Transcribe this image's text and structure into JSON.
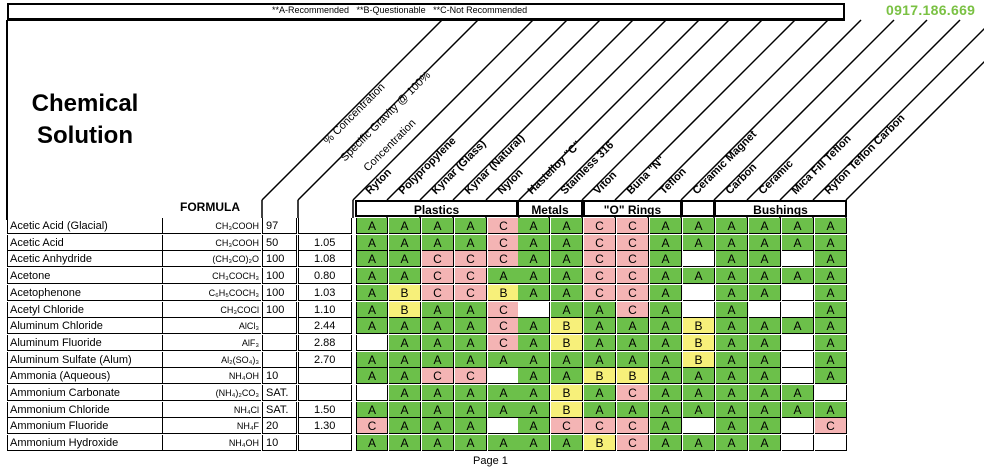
{
  "legend": "**A-Recommended   **B-Questionable   **C-Not Recommended",
  "phone": "0917.186.669",
  "title_line1": "Chemical",
  "title_line2": "Solution",
  "formula_header": "FORMULA",
  "column_headers": {
    "concentration": "% Concentration",
    "specific_gravity_1": "Specific Gravity @ 100%",
    "specific_gravity_2": "Concentration",
    "materials": [
      "Ryton",
      "Polypropylene",
      "Kynar (Glass)",
      "Kynar (Natural)",
      "Nylon",
      "Hastelloy \"C\"",
      "Stainless 316",
      "Viton",
      "Buna \"N\"",
      "Teflon",
      "Ceramic Magnet",
      "Carbon",
      "Ceramic",
      "Mica Fill Teflon",
      "Ryton Teflon Carbon"
    ]
  },
  "groups": {
    "plastics": "Plastics",
    "metals": "Metals",
    "orings": "\"O\" Rings",
    "bushings": "Bushings"
  },
  "rows": [
    {
      "name": "Acetic Acid (Glacial)",
      "formula": "CH₃COOH",
      "conc": "97",
      "sg": "",
      "ratings": [
        "A",
        "A",
        "A",
        "A",
        "C",
        "A",
        "A",
        "C",
        "C",
        "A",
        "A",
        "A",
        "A",
        "A",
        "A"
      ]
    },
    {
      "name": "Acetic Acid",
      "formula": "CH₃COOH",
      "conc": "50",
      "sg": "1.05",
      "ratings": [
        "A",
        "A",
        "A",
        "A",
        "C",
        "A",
        "A",
        "C",
        "C",
        "A",
        "A",
        "A",
        "A",
        "A",
        "A"
      ]
    },
    {
      "name": "Acetic Anhydride",
      "formula": "(CH₃CO)₂O",
      "conc": "100",
      "sg": "1.08",
      "ratings": [
        "A",
        "A",
        "C",
        "C",
        "C",
        "A",
        "A",
        "C",
        "C",
        "A",
        "",
        "A",
        "A",
        "",
        "A"
      ]
    },
    {
      "name": "Acetone",
      "formula": "CH₃COCH₃",
      "conc": "100",
      "sg": "0.80",
      "ratings": [
        "A",
        "A",
        "C",
        "C",
        "A",
        "A",
        "A",
        "C",
        "C",
        "A",
        "A",
        "A",
        "A",
        "A",
        "A"
      ]
    },
    {
      "name": "Acetophenone",
      "formula": "C₆H₅COCH₃",
      "conc": "100",
      "sg": "1.03",
      "ratings": [
        "A",
        "B",
        "C",
        "C",
        "B",
        "A",
        "A",
        "C",
        "C",
        "A",
        "",
        "A",
        "A",
        "",
        "A"
      ]
    },
    {
      "name": "Acetyl Chloride",
      "formula": "CH₃COCl",
      "conc": "100",
      "sg": "1.10",
      "ratings": [
        "A",
        "B",
        "A",
        "A",
        "C",
        "",
        "A",
        "A",
        "C",
        "A",
        "",
        "A",
        "",
        "",
        "A"
      ]
    },
    {
      "name": "Aluminum Chloride",
      "formula": "AlCl₃",
      "conc": "",
      "sg": "2.44",
      "ratings": [
        "A",
        "A",
        "A",
        "A",
        "C",
        "A",
        "B",
        "A",
        "A",
        "A",
        "B",
        "A",
        "A",
        "A",
        "A"
      ]
    },
    {
      "name": "Aluminum Fluoride",
      "formula": "AlF₃",
      "conc": "",
      "sg": "2.88",
      "ratings": [
        "",
        "A",
        "A",
        "A",
        "C",
        "A",
        "B",
        "A",
        "A",
        "A",
        "B",
        "A",
        "A",
        "",
        "A"
      ]
    },
    {
      "name": "Aluminum Sulfate (Alum)",
      "formula": "Al₂(SO₄)₃",
      "conc": "",
      "sg": "2.70",
      "ratings": [
        "A",
        "A",
        "A",
        "A",
        "A",
        "A",
        "A",
        "A",
        "A",
        "A",
        "B",
        "A",
        "A",
        "",
        "A"
      ]
    },
    {
      "name": "Ammonia (Aqueous)",
      "formula": "NH₄OH",
      "conc": "10",
      "sg": "",
      "ratings": [
        "A",
        "A",
        "C",
        "C",
        "",
        "A",
        "A",
        "B",
        "B",
        "A",
        "A",
        "A",
        "A",
        "",
        "A"
      ]
    },
    {
      "name": "Ammonium Carbonate",
      "formula": "(NH₄)₂CO₃",
      "conc": "SAT.",
      "sg": "",
      "ratings": [
        "",
        "A",
        "A",
        "A",
        "A",
        "A",
        "B",
        "A",
        "C",
        "A",
        "A",
        "A",
        "A",
        "A",
        ""
      ]
    },
    {
      "name": "Ammonium Chloride",
      "formula": "NH₄Cl",
      "conc": "SAT.",
      "sg": "1.50",
      "ratings": [
        "A",
        "A",
        "A",
        "A",
        "A",
        "A",
        "B",
        "A",
        "A",
        "A",
        "A",
        "A",
        "A",
        "A",
        "A"
      ]
    },
    {
      "name": "Ammonium Fluoride",
      "formula": "NH₄F",
      "conc": "20",
      "sg": "1.30",
      "ratings": [
        "C",
        "A",
        "A",
        "A",
        "",
        "A",
        "C",
        "C",
        "C",
        "A",
        "",
        "A",
        "A",
        "",
        "C"
      ]
    },
    {
      "name": "Ammonium Hydroxide",
      "formula": "NH₄OH",
      "conc": "10",
      "sg": "",
      "ratings": [
        "A",
        "A",
        "A",
        "A",
        "A",
        "A",
        "A",
        "B",
        "C",
        "A",
        "A",
        "A",
        "A",
        "",
        ""
      ]
    }
  ],
  "footer": "Page 1",
  "colors": {
    "A": "#6cc04a",
    "B": "#f7f07a",
    "C": "#f4b4b4",
    "phone": "#7ac143"
  }
}
